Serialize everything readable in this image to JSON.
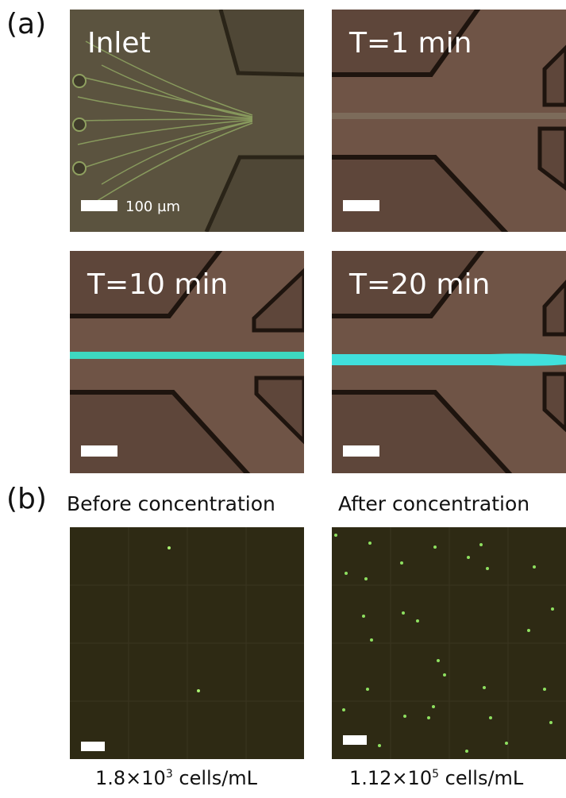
{
  "figure": {
    "panel_a": {
      "label": "(a)",
      "images": [
        {
          "label": "Inlet",
          "scale_bar": "100 µm"
        },
        {
          "label": "T=1 min"
        },
        {
          "label": "T=10 min"
        },
        {
          "label": "T=20 min"
        }
      ]
    },
    "panel_b": {
      "label": "(b)",
      "images": [
        {
          "title": "Before concentration",
          "caption": {
            "base": "1.8×10",
            "exponent": "3",
            "unit": "cells/mL"
          }
        },
        {
          "title": "After concentration",
          "caption": {
            "base": "1.12×10",
            "exponent": "5",
            "unit": "cells/mL"
          }
        }
      ]
    }
  }
}
